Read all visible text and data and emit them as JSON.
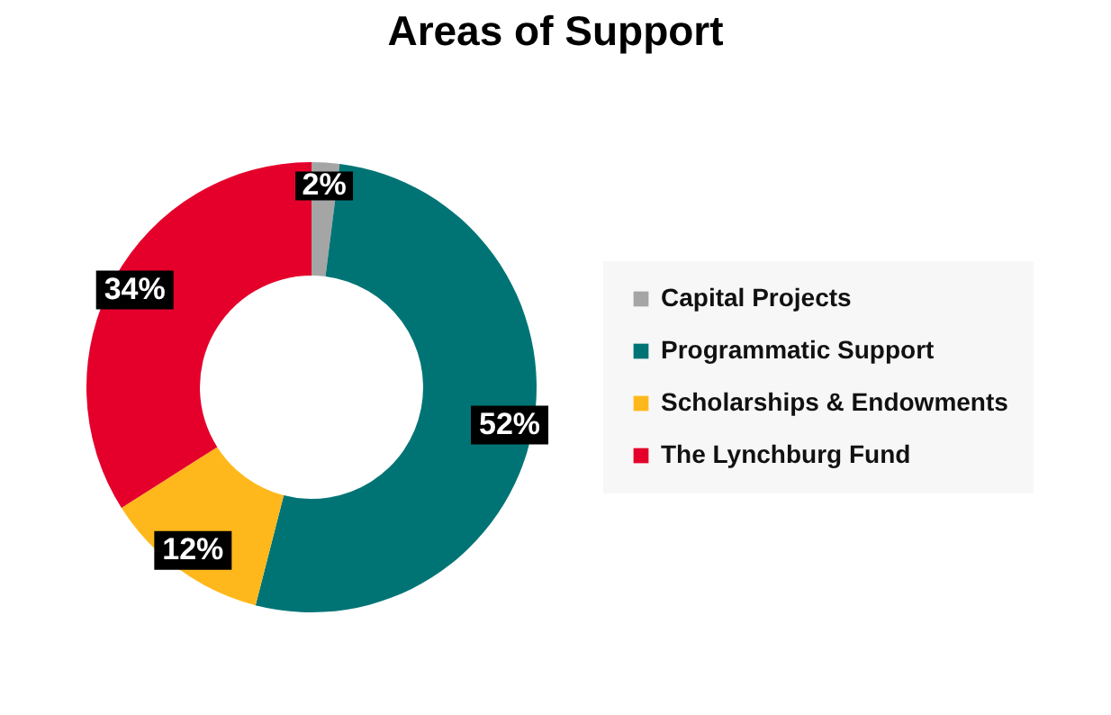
{
  "chart_data": {
    "type": "donut",
    "title": "Areas of Support",
    "categories": [
      "Capital Projects",
      "Programmatic Support",
      "Scholarships & Endowments",
      "The Lynchburg Fund"
    ],
    "values": [
      2,
      52,
      12,
      34
    ],
    "colors": [
      "#a5a5a5",
      "#007475",
      "#ffb81c",
      "#e4002b"
    ],
    "value_labels": [
      "2%",
      "52%",
      "12%",
      "34%"
    ],
    "legend": "right"
  }
}
